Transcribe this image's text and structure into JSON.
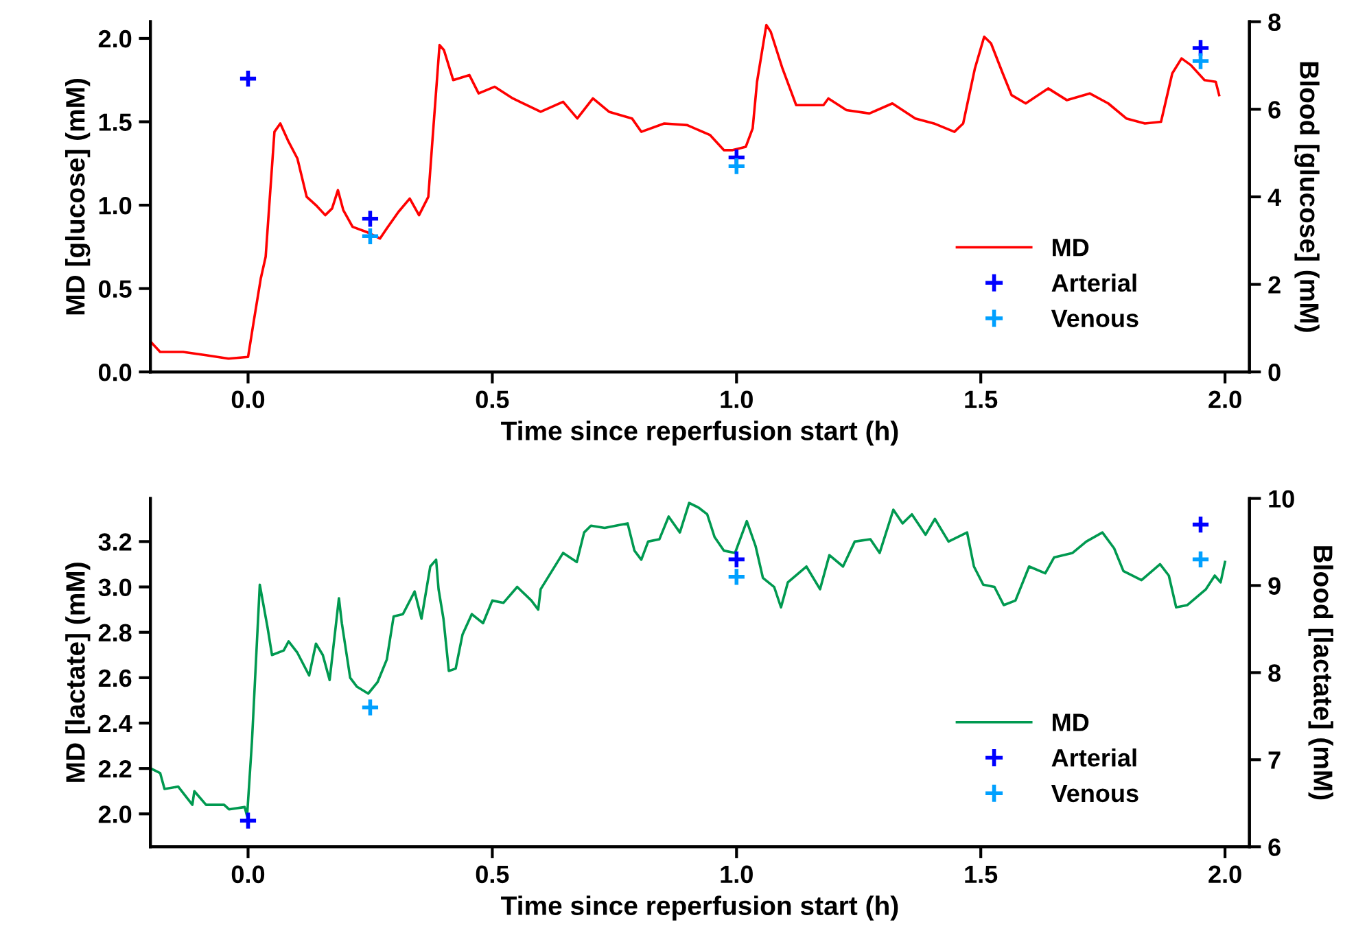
{
  "chart_data": [
    {
      "type": "line",
      "xlabel": "Time since reperfusion start (h)",
      "ylabel": "MD [glucose] (mM)",
      "y2label": "Blood [glucose] (mM)",
      "xlim": [
        -0.2,
        2.05
      ],
      "xticks": [
        {
          "value": 0,
          "label": "0.0"
        },
        {
          "value": 0.5,
          "label": "0.5"
        },
        {
          "value": 1,
          "label": "1.0"
        },
        {
          "value": 1.5,
          "label": "1.5"
        },
        {
          "value": 2,
          "label": "2.0"
        }
      ],
      "ylim": [
        0,
        2.1
      ],
      "yticks": [
        {
          "value": 0,
          "label": "0.0"
        },
        {
          "value": 0.5,
          "label": "0.5"
        },
        {
          "value": 1,
          "label": "1.0"
        },
        {
          "value": 1.5,
          "label": "1.5"
        },
        {
          "value": 2,
          "label": "2.0"
        }
      ],
      "y2lim": [
        0,
        8
      ],
      "y2ticks": [
        0,
        2,
        4,
        6,
        8
      ],
      "legend": "bottom right",
      "grid": false,
      "series": [
        {
          "name": "MD",
          "color": "#ff0000",
          "marker": "none",
          "line_style": "solid",
          "x": [
            -0.199,
            -0.18,
            -0.133,
            -0.086,
            -0.04,
            0.0,
            0.012,
            0.026,
            0.036,
            0.054,
            0.066,
            0.083,
            0.101,
            0.12,
            0.139,
            0.158,
            0.172,
            0.184,
            0.195,
            0.214,
            0.242,
            0.27,
            0.284,
            0.308,
            0.331,
            0.35,
            0.369,
            0.378,
            0.392,
            0.401,
            0.42,
            0.453,
            0.472,
            0.505,
            0.542,
            0.599,
            0.645,
            0.674,
            0.706,
            0.739,
            0.786,
            0.805,
            0.852,
            0.899,
            0.946,
            0.974,
            0.992,
            1.019,
            1.033,
            1.042,
            1.061,
            1.07,
            1.094,
            1.122,
            1.178,
            1.188,
            1.225,
            1.272,
            1.319,
            1.366,
            1.404,
            1.446,
            1.464,
            1.488,
            1.507,
            1.521,
            1.545,
            1.563,
            1.592,
            1.638,
            1.676,
            1.723,
            1.761,
            1.798,
            1.836,
            1.869,
            1.892,
            1.911,
            1.93,
            1.958,
            1.981,
            1.988
          ],
          "values": [
            0.18,
            0.12,
            0.12,
            0.1,
            0.08,
            0.09,
            0.31,
            0.56,
            0.69,
            1.44,
            1.49,
            1.38,
            1.28,
            1.05,
            1.0,
            0.94,
            0.98,
            1.09,
            0.97,
            0.87,
            0.84,
            0.8,
            0.86,
            0.96,
            1.04,
            0.94,
            1.05,
            1.41,
            1.96,
            1.93,
            1.75,
            1.78,
            1.67,
            1.71,
            1.64,
            1.56,
            1.62,
            1.52,
            1.64,
            1.56,
            1.52,
            1.44,
            1.49,
            1.48,
            1.42,
            1.33,
            1.33,
            1.35,
            1.46,
            1.74,
            2.08,
            2.04,
            1.82,
            1.6,
            1.6,
            1.64,
            1.57,
            1.55,
            1.61,
            1.52,
            1.49,
            1.44,
            1.49,
            1.82,
            2.01,
            1.97,
            1.79,
            1.66,
            1.61,
            1.7,
            1.63,
            1.67,
            1.61,
            1.52,
            1.49,
            1.5,
            1.79,
            1.88,
            1.84,
            1.75,
            1.74,
            1.66
          ]
        },
        {
          "name": "Arterial",
          "type": "scatter",
          "axis": "y2",
          "color": "#0000ff",
          "marker": "cross",
          "x": [
            0,
            0.25,
            1.0,
            1.95
          ],
          "values": [
            6.7,
            3.5,
            4.9,
            7.4
          ]
        },
        {
          "name": "Venous",
          "type": "scatter",
          "axis": "y2",
          "color": "#00a0ff",
          "marker": "cross",
          "x": [
            0.25,
            1.0,
            1.95
          ],
          "values": [
            3.1,
            4.7,
            7.1
          ]
        }
      ]
    },
    {
      "type": "line",
      "xlabel": "Time since reperfusion start (h)",
      "ylabel": "MD [lactate] (mM)",
      "y2label": "Blood [lactate] (mM)",
      "xlim": [
        -0.2,
        2.05
      ],
      "xticks": [
        {
          "value": 0,
          "label": "0.0"
        },
        {
          "value": 0.5,
          "label": "0.5"
        },
        {
          "value": 1,
          "label": "1.0"
        },
        {
          "value": 1.5,
          "label": "1.5"
        },
        {
          "value": 2,
          "label": "2.0"
        }
      ],
      "ylim": [
        1.855,
        3.39
      ],
      "yticks": [
        {
          "value": 2.0,
          "label": "2.0"
        },
        2.2,
        2.4,
        2.6,
        2.8,
        {
          "value": 3.0,
          "label": "3.0"
        },
        3.2
      ],
      "y2lim": [
        6,
        10
      ],
      "y2ticks": [
        6,
        7,
        8,
        9,
        10
      ],
      "legend": "bottom right",
      "grid": false,
      "series": [
        {
          "name": "MD",
          "color": "#009950",
          "marker": "none",
          "line_style": "solid",
          "x": [
            -0.199,
            -0.18,
            -0.171,
            -0.143,
            -0.114,
            -0.11,
            -0.086,
            -0.049,
            -0.039,
            -0.007,
            -0.002,
            0.008,
            0.024,
            0.04,
            0.049,
            0.073,
            0.083,
            0.101,
            0.125,
            0.139,
            0.153,
            0.167,
            0.186,
            0.192,
            0.209,
            0.223,
            0.246,
            0.265,
            0.284,
            0.298,
            0.317,
            0.341,
            0.355,
            0.373,
            0.385,
            0.39,
            0.4,
            0.411,
            0.425,
            0.439,
            0.458,
            0.481,
            0.5,
            0.523,
            0.551,
            0.58,
            0.594,
            0.599,
            0.622,
            0.645,
            0.673,
            0.688,
            0.702,
            0.73,
            0.753,
            0.777,
            0.791,
            0.805,
            0.819,
            0.842,
            0.861,
            0.884,
            0.903,
            0.922,
            0.94,
            0.955,
            0.974,
            0.997,
            1.021,
            1.039,
            1.054,
            1.077,
            1.091,
            1.105,
            1.143,
            1.171,
            1.19,
            1.218,
            1.242,
            1.274,
            1.293,
            1.321,
            1.34,
            1.359,
            1.387,
            1.406,
            1.434,
            1.472,
            1.486,
            1.505,
            1.528,
            1.547,
            1.571,
            1.599,
            1.632,
            1.65,
            1.688,
            1.716,
            1.749,
            1.773,
            1.792,
            1.829,
            1.867,
            1.885,
            1.9,
            1.923,
            1.961,
            1.979,
            1.991,
            2.0
          ],
          "values": [
            2.2,
            2.18,
            2.11,
            2.12,
            2.04,
            2.1,
            2.04,
            2.04,
            2.02,
            2.03,
            1.99,
            2.32,
            3.01,
            2.82,
            2.7,
            2.72,
            2.76,
            2.71,
            2.61,
            2.75,
            2.7,
            2.59,
            2.95,
            2.84,
            2.6,
            2.56,
            2.53,
            2.58,
            2.68,
            2.87,
            2.88,
            2.98,
            2.86,
            3.09,
            3.12,
            2.99,
            2.86,
            2.63,
            2.64,
            2.79,
            2.88,
            2.84,
            2.94,
            2.93,
            3.0,
            2.94,
            2.9,
            2.99,
            3.07,
            3.15,
            3.11,
            3.24,
            3.27,
            3.26,
            3.27,
            3.28,
            3.16,
            3.12,
            3.2,
            3.21,
            3.31,
            3.24,
            3.37,
            3.35,
            3.32,
            3.22,
            3.16,
            3.15,
            3.29,
            3.18,
            3.04,
            3.0,
            2.91,
            3.02,
            3.09,
            2.99,
            3.14,
            3.09,
            3.2,
            3.21,
            3.15,
            3.34,
            3.28,
            3.32,
            3.23,
            3.3,
            3.2,
            3.24,
            3.09,
            3.01,
            3.0,
            2.92,
            2.94,
            3.09,
            3.06,
            3.13,
            3.15,
            3.2,
            3.24,
            3.17,
            3.07,
            3.03,
            3.1,
            3.05,
            2.91,
            2.92,
            2.99,
            3.05,
            3.02,
            3.11
          ]
        },
        {
          "name": "Arterial",
          "type": "scatter",
          "axis": "y2",
          "color": "#0000ff",
          "marker": "cross",
          "x": [
            0,
            1.0,
            1.95
          ],
          "values": [
            6.3,
            9.3,
            9.7
          ]
        },
        {
          "name": "Venous",
          "type": "scatter",
          "axis": "y2",
          "color": "#00a0ff",
          "marker": "cross",
          "x": [
            0.25,
            1.0,
            1.95
          ],
          "values": [
            7.6,
            9.1,
            9.3
          ]
        }
      ]
    }
  ]
}
